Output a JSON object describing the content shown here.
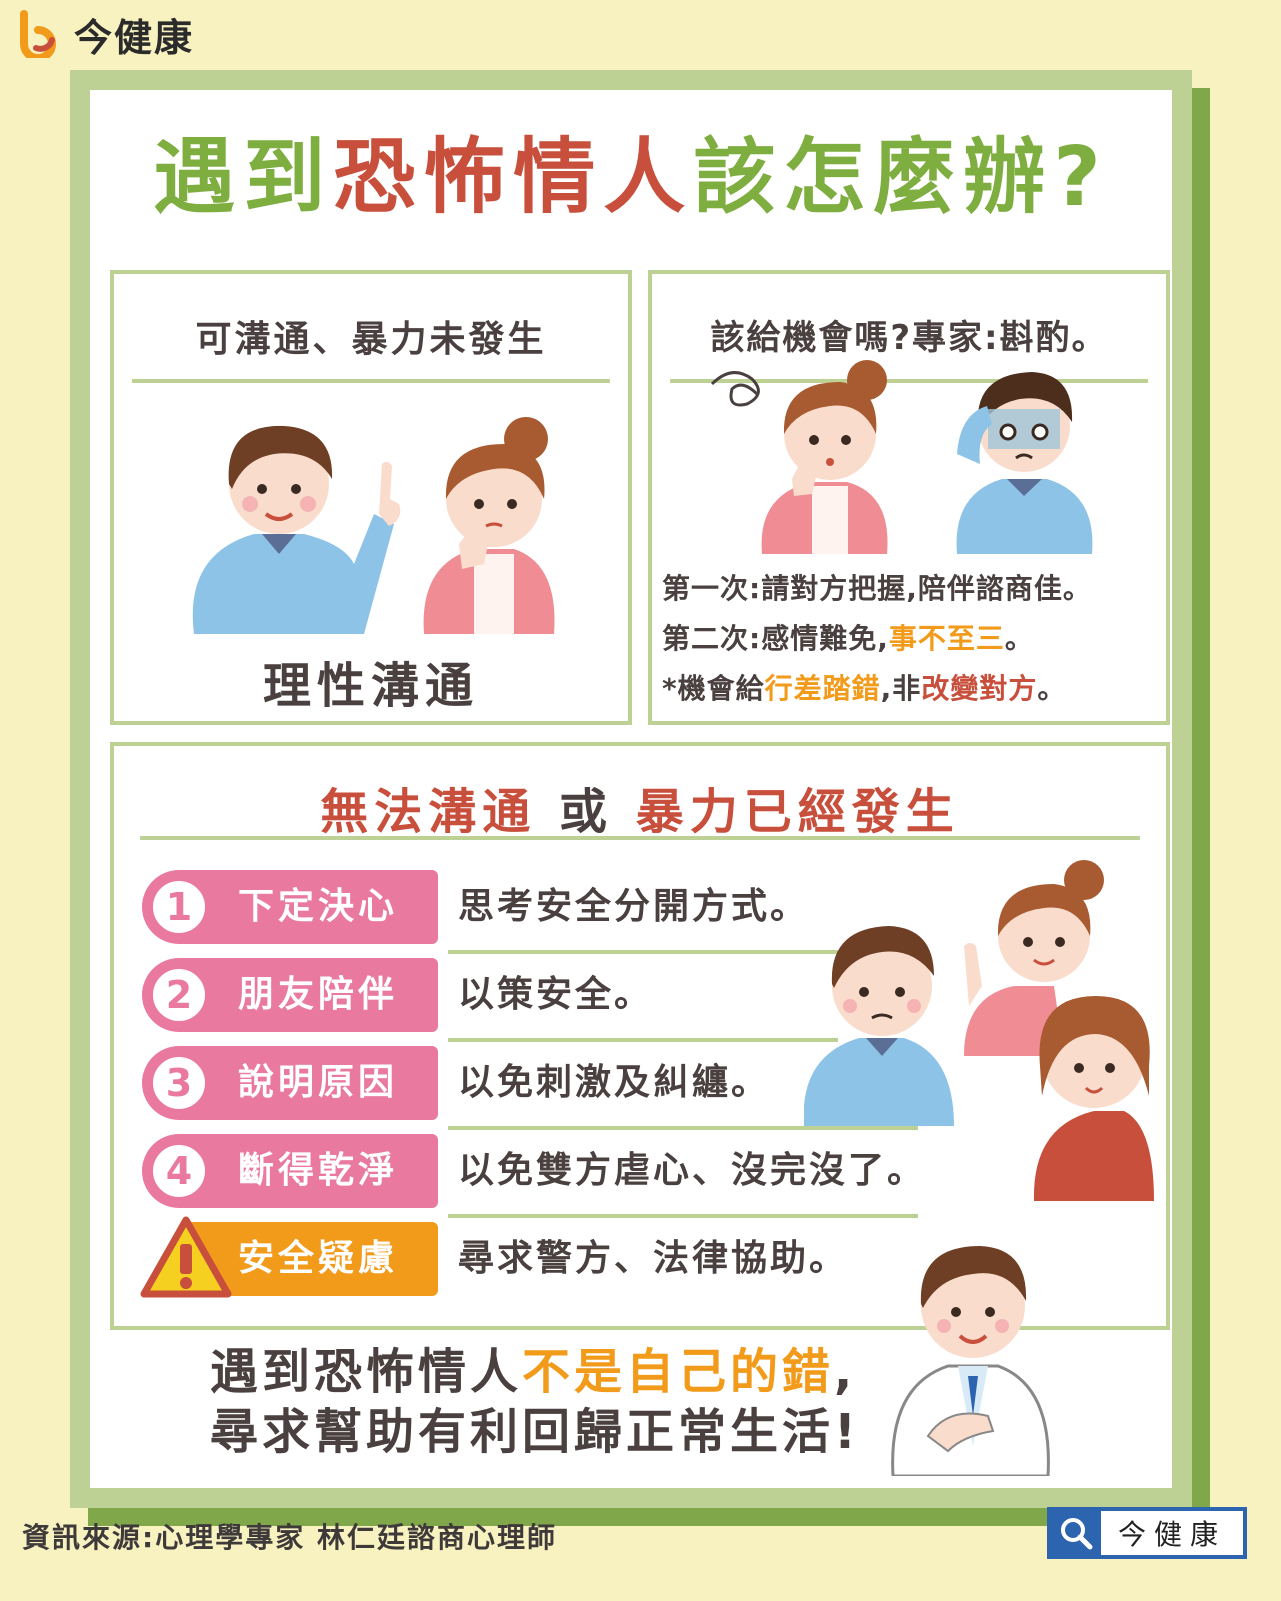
{
  "brand": {
    "name": "今健康",
    "colors": {
      "orange": "#f29a1a",
      "red": "#c84f3c",
      "green": "#7fae40",
      "pink": "#e9799f",
      "blue": "#2d64b0"
    }
  },
  "title": {
    "part1": "遇到",
    "part2": "恐怖情人",
    "part3": "該怎麼辦?"
  },
  "left_box": {
    "heading": "可溝通、暴力未發生",
    "footer": "理性溝通"
  },
  "right_box": {
    "heading": "該給機會嗎?專家:斟酌。",
    "tips": [
      {
        "text": "第一次:請對方把握,陪伴諮商佳。"
      },
      {
        "prefix": "第二次:感情難免,",
        "highlight": "事不至三",
        "suffix": "。"
      },
      {
        "prefix": "*機會給",
        "highlight": "行差踏錯",
        "middle": ",非",
        "highlight2": "改變對方",
        "suffix": "。"
      }
    ]
  },
  "bottom_box": {
    "heading_part1": "無法溝通",
    "heading_part2": "或",
    "heading_part3": "暴力已經發生",
    "steps": [
      {
        "number": "1",
        "label": "下定決心",
        "text": "思考安全分開方式。"
      },
      {
        "number": "2",
        "label": "朋友陪伴",
        "text": "以策安全。"
      },
      {
        "number": "3",
        "label": "說明原因",
        "text": "以免刺激及糾纏。"
      },
      {
        "number": "4",
        "label": "斷得乾淨",
        "text": "以免雙方虐心、沒完沒了。"
      },
      {
        "number": "!",
        "label": "安全疑慮",
        "text": "尋求警方、法律協助。",
        "icon": "warning-icon"
      }
    ]
  },
  "closing": {
    "line1_prefix": "遇到恐怖情人",
    "line1_highlight": "不是自己的錯",
    "line1_suffix": ",",
    "line2": "尋求幫助有利回歸正常生活!"
  },
  "footer": {
    "source": "資訊來源:心理學專家  林仁廷諮商心理師",
    "search_label": "今健康",
    "search_icon": "search-icon"
  }
}
